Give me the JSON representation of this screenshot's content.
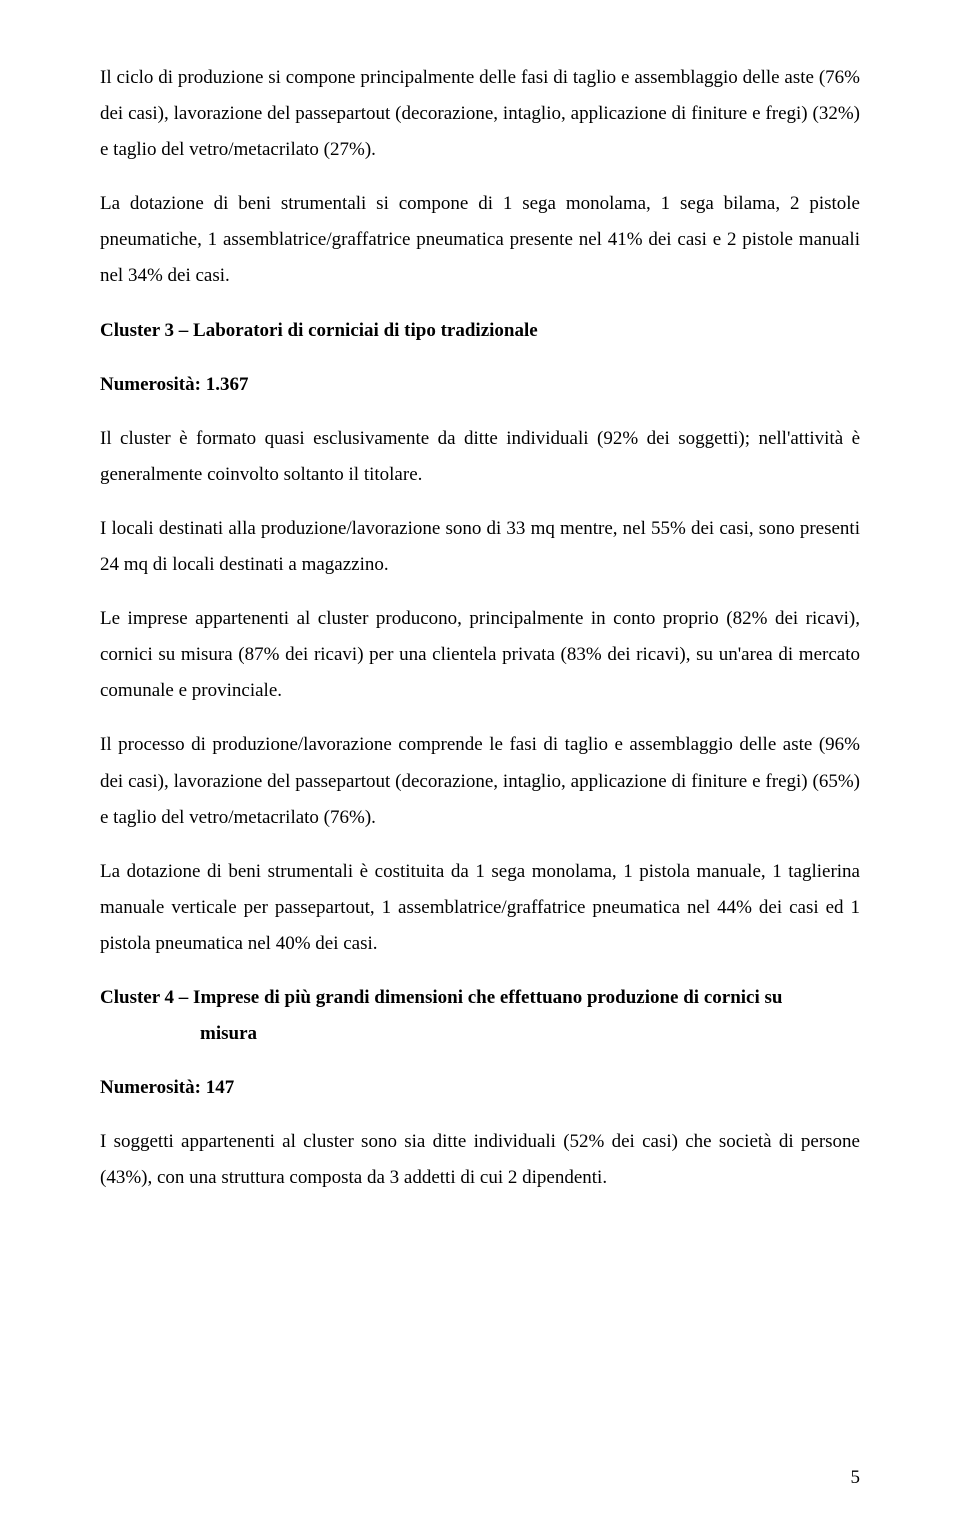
{
  "paragraphs": {
    "p1": "Il ciclo di produzione si compone principalmente delle fasi di taglio e assemblaggio delle aste (76% dei casi), lavorazione del passepartout (decorazione, intaglio, applicazione di finiture e fregi) (32%) e taglio del vetro/metacrilato (27%).",
    "p2": "La dotazione di beni strumentali si compone di 1 sega monolama, 1 sega bilama, 2 pistole pneumatiche, 1 assemblatrice/graffatrice pneumatica presente nel 41% dei casi e 2 pistole manuali nel 34% dei casi.",
    "h1": "Cluster 3 – Laboratori di corniciai di tipo tradizionale",
    "h2": "Numerosità: 1.367",
    "p3": "Il cluster è formato quasi esclusivamente da ditte individuali (92% dei soggetti); nell'attività è generalmente coinvolto soltanto il titolare.",
    "p4": "I locali destinati alla produzione/lavorazione sono di 33 mq mentre, nel 55% dei casi, sono presenti 24 mq di locali destinati a magazzino.",
    "p5": "Le imprese appartenenti al cluster producono, principalmente in conto proprio (82% dei ricavi), cornici su misura (87% dei ricavi) per una clientela privata (83% dei ricavi), su un'area di mercato comunale e provinciale.",
    "p6": "Il processo di produzione/lavorazione comprende le fasi di taglio e assemblaggio delle aste (96% dei casi), lavorazione del passepartout (decorazione, intaglio, applicazione di finiture e fregi) (65%) e taglio del vetro/metacrilato (76%).",
    "p7": "La dotazione di beni strumentali è costituita da 1 sega monolama, 1 pistola manuale, 1 taglierina manuale verticale per passepartout, 1 assemblatrice/graffatrice pneumatica nel 44% dei casi ed 1 pistola pneumatica nel 40% dei casi.",
    "h3a": "Cluster 4 – Imprese di più grandi dimensioni che effettuano produzione di cornici su",
    "h3b": "misura",
    "h4": "Numerosità: 147",
    "p8": "I soggetti appartenenti al cluster sono sia ditte individuali (52% dei casi) che società di persone (43%), con una struttura composta da 3 addetti di cui 2 dipendenti."
  },
  "pageNumber": "5"
}
